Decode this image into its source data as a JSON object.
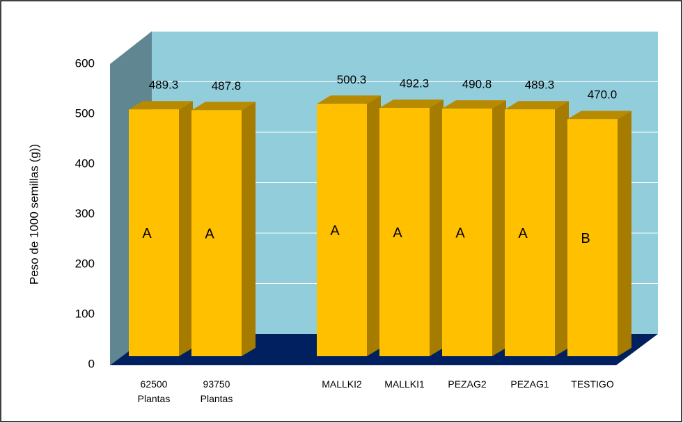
{
  "chart_data": {
    "type": "bar3d",
    "y_label": "Peso de 1000 semillas (g))",
    "categories": [
      "62500 Plantas",
      "93750 Plantas",
      null,
      "MALLKI2",
      "MALLKI1",
      "PEZAG2",
      "PEZAG1",
      "TESTIGO"
    ],
    "values": [
      489.3,
      487.8,
      null,
      500.3,
      492.3,
      490.8,
      489.3,
      470
    ],
    "value_labels": [
      "489.3",
      "487.8",
      null,
      "500.3",
      "492.3",
      "490.8",
      "489.3",
      "470.0"
    ],
    "letters": [
      "A",
      "A",
      null,
      "A",
      "A",
      "A",
      "A",
      "B"
    ],
    "color": "#ffc000",
    "ylim": [
      0,
      600
    ],
    "yticks": [
      0,
      100,
      200,
      300,
      400,
      500,
      600
    ],
    "grid": true
  }
}
